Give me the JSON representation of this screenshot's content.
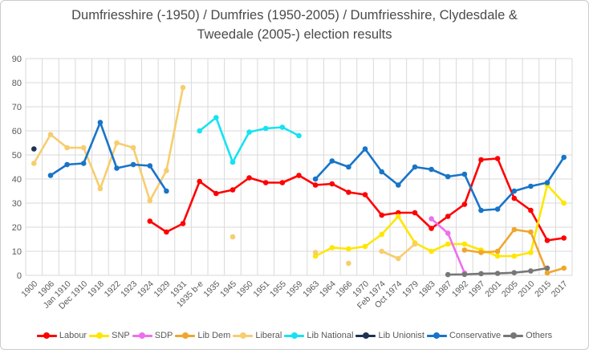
{
  "chart_data": {
    "type": "line",
    "title": "Dumfriesshire (-1950) / Dumfries (1950-2005) / Dumfriesshire, Clydesdale & Tweedale (2005-) election results",
    "xlabel": "",
    "ylabel": "",
    "ylim": [
      0,
      90
    ],
    "yticks": [
      0,
      10,
      20,
      30,
      40,
      50,
      60,
      70,
      80,
      90
    ],
    "grid": true,
    "legend_position": "bottom",
    "axis_text_color": "#595959",
    "gridline_color": "#d9d9d9",
    "categories": [
      "1900",
      "1906",
      "Jan 1910",
      "Dec 1910",
      "1918",
      "1922",
      "1923",
      "1924",
      "1929",
      "1931",
      "1935 b-e",
      "1935",
      "1945",
      "1950",
      "1951",
      "1955",
      "1959",
      "1963",
      "1964",
      "1966",
      "1970",
      "Feb 1974",
      "Oct 1974",
      "1979",
      "1983",
      "1987",
      "1992",
      "1997",
      "2001",
      "2005",
      "2010",
      "2015",
      "2017"
    ],
    "series": [
      {
        "name": "Labour",
        "color": "#FF0000",
        "values": [
          null,
          null,
          null,
          null,
          null,
          null,
          null,
          22.5,
          18,
          21.5,
          39,
          34,
          35.5,
          40.5,
          38.5,
          38.5,
          41.5,
          37.5,
          38,
          34.5,
          33.5,
          25,
          26,
          26,
          19.5,
          24.5,
          29.5,
          48,
          48.5,
          32,
          27,
          14.5,
          15.5
        ]
      },
      {
        "name": "SNP",
        "color": "#FFE600",
        "values": [
          null,
          null,
          null,
          null,
          null,
          null,
          null,
          null,
          null,
          null,
          null,
          null,
          null,
          null,
          null,
          null,
          null,
          8,
          11.5,
          11,
          12,
          17,
          24.5,
          13.5,
          10,
          13,
          13,
          10.5,
          8,
          8,
          9.5,
          37.5,
          30
        ]
      },
      {
        "name": "SDP",
        "color": "#EE6FEE",
        "values": [
          null,
          null,
          null,
          null,
          null,
          null,
          null,
          null,
          null,
          null,
          null,
          null,
          null,
          null,
          null,
          null,
          null,
          null,
          null,
          null,
          null,
          null,
          null,
          null,
          23.5,
          17.5,
          1,
          null,
          null,
          null,
          null,
          null,
          null
        ]
      },
      {
        "name": "Lib Dem",
        "color": "#F0A62D",
        "values": [
          null,
          null,
          null,
          null,
          null,
          null,
          null,
          null,
          null,
          null,
          null,
          null,
          null,
          null,
          null,
          null,
          null,
          null,
          null,
          null,
          null,
          null,
          null,
          null,
          null,
          null,
          10.5,
          9.5,
          10,
          19,
          18,
          1,
          3
        ]
      },
      {
        "name": "Liberal",
        "color": "#F7CD6E",
        "values": [
          46.5,
          58.5,
          53,
          53,
          36,
          55,
          53,
          31,
          43.5,
          78,
          null,
          null,
          16,
          null,
          null,
          null,
          null,
          9.5,
          null,
          5,
          null,
          10,
          7,
          13,
          null,
          null,
          null,
          null,
          null,
          null,
          null,
          null,
          null
        ]
      },
      {
        "name": "Lib National",
        "color": "#17E2F2",
        "values": [
          null,
          null,
          null,
          null,
          null,
          null,
          null,
          null,
          null,
          null,
          60,
          65.5,
          47,
          59.5,
          61,
          61.5,
          58,
          null,
          null,
          null,
          null,
          null,
          null,
          null,
          null,
          null,
          null,
          null,
          null,
          null,
          null,
          null,
          null
        ]
      },
      {
        "name": "Lib Unionist",
        "color": "#1F3254",
        "values": [
          52.5,
          null,
          null,
          null,
          null,
          null,
          null,
          null,
          null,
          null,
          null,
          null,
          null,
          null,
          null,
          null,
          null,
          null,
          null,
          null,
          null,
          null,
          null,
          null,
          null,
          null,
          null,
          null,
          null,
          null,
          null,
          null,
          null
        ]
      },
      {
        "name": "Conservative",
        "color": "#1874C9",
        "values": [
          null,
          41.5,
          46,
          46.5,
          63.5,
          44.5,
          46,
          45.5,
          35,
          null,
          null,
          null,
          null,
          null,
          null,
          null,
          null,
          40,
          47.5,
          45,
          52.5,
          43,
          37.5,
          45,
          44,
          41,
          42,
          27,
          27.5,
          35,
          37,
          38.5,
          49
        ]
      },
      {
        "name": "Others",
        "color": "#777777",
        "values": [
          null,
          null,
          null,
          null,
          null,
          null,
          null,
          null,
          null,
          null,
          null,
          null,
          null,
          null,
          null,
          null,
          null,
          null,
          null,
          null,
          null,
          null,
          null,
          null,
          null,
          0.3,
          0.4,
          0.7,
          0.8,
          1.1,
          1.8,
          3,
          null
        ]
      }
    ]
  }
}
